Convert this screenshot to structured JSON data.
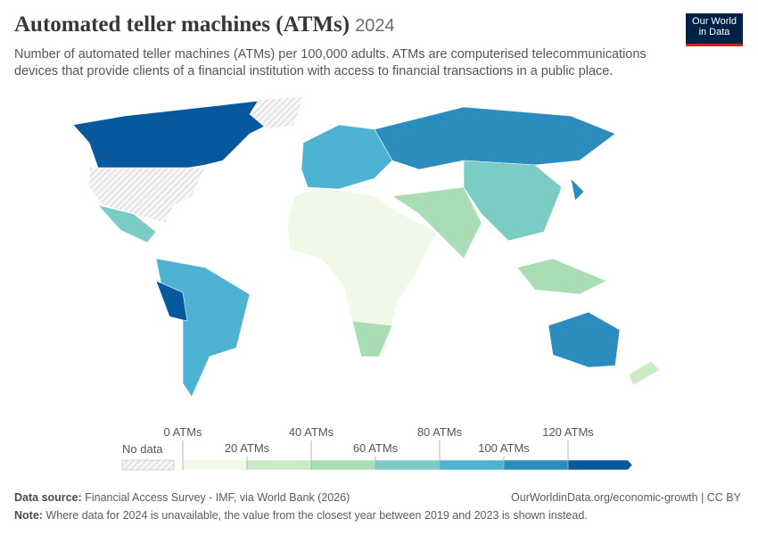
{
  "header": {
    "title": "Automated teller machines (ATMs)",
    "year": "2024",
    "subtitle": "Number of automated teller machines (ATMs) per 100,000 adults. ATMs are computerised telecommunications devices that provide clients of a financial institution with access to financial transactions in a public place.",
    "logo": [
      "Our World",
      "in Data"
    ]
  },
  "legend": {
    "no_data": "No data",
    "lim": [
      0,
      140
    ],
    "ticks": [
      {
        "value": 0,
        "label": "0 ATMs"
      },
      {
        "value": 20,
        "label": "20 ATMs"
      },
      {
        "value": 40,
        "label": "40 ATMs"
      },
      {
        "value": 60,
        "label": "60 ATMs"
      },
      {
        "value": 80,
        "label": "80 ATMs"
      },
      {
        "value": 100,
        "label": "100 ATMs"
      },
      {
        "value": 120,
        "label": "120 ATMs"
      }
    ],
    "colors": [
      "#f0f9e8",
      "#ccebc5",
      "#a8ddb5",
      "#7bccc4",
      "#4eb3d3",
      "#2b8cbe",
      "#08589e"
    ]
  },
  "footer": {
    "source_label": "Data source:",
    "source": "Financial Access Survey - IMF, via World Bank (2026)",
    "url": "OurWorldinData.org/economic-growth | CC BY",
    "note_label": "Note:",
    "note": "Where data for 2024 is unavailable, the value from the closest year between 2019 and 2023 is shown instead."
  }
}
